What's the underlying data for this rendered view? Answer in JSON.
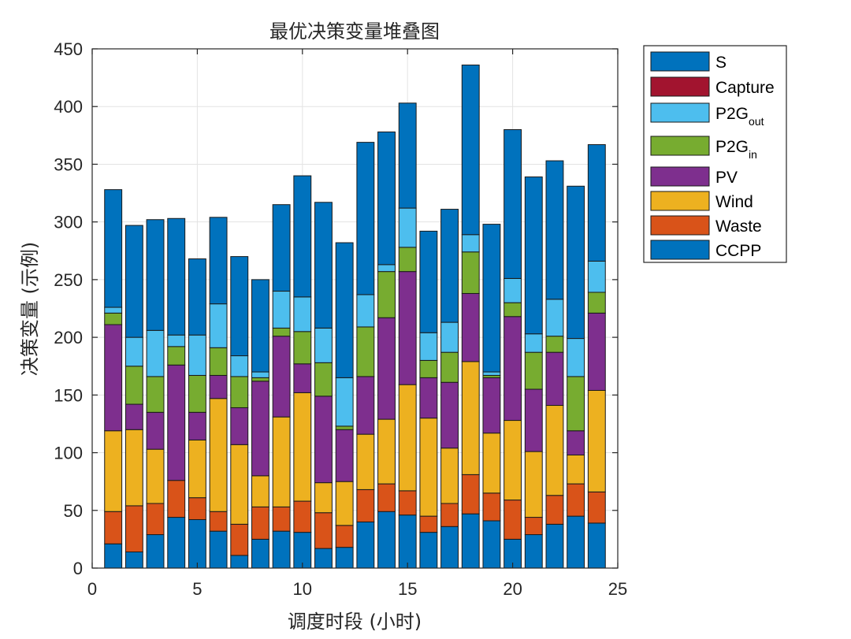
{
  "chart_data": {
    "type": "bar",
    "stacked": true,
    "title": "最优决策变量堆叠图",
    "xlabel": "调度时段 (小时)",
    "ylabel": "决策变量 (示例)",
    "xlim": [
      0,
      25
    ],
    "ylim": [
      0,
      450
    ],
    "xticks": [
      0,
      5,
      10,
      15,
      20,
      25
    ],
    "yticks": [
      0,
      50,
      100,
      150,
      200,
      250,
      300,
      350,
      400,
      450
    ],
    "grid": true,
    "legend_position": "outside-top-right",
    "categories": [
      1,
      2,
      3,
      4,
      5,
      6,
      7,
      8,
      9,
      10,
      11,
      12,
      13,
      14,
      15,
      16,
      17,
      18,
      19,
      20,
      21,
      22,
      23,
      24
    ],
    "series": [
      {
        "name": "CCPP",
        "color": "#0072BD",
        "values": [
          21,
          14,
          29,
          44,
          42,
          32,
          11,
          25,
          32,
          31,
          17,
          18,
          40,
          49,
          46,
          31,
          36,
          47,
          41,
          25,
          29,
          38,
          45,
          39
        ]
      },
      {
        "name": "Waste",
        "color": "#D95319",
        "values": [
          28,
          40,
          27,
          32,
          19,
          17,
          27,
          28,
          21,
          27,
          31,
          19,
          28,
          24,
          21,
          14,
          20,
          34,
          24,
          34,
          15,
          25,
          28,
          27
        ]
      },
      {
        "name": "Wind",
        "color": "#EDB120",
        "values": [
          70,
          66,
          47,
          0,
          50,
          98,
          69,
          27,
          78,
          94,
          26,
          38,
          48,
          56,
          92,
          85,
          48,
          98,
          52,
          69,
          57,
          78,
          25,
          88
        ]
      },
      {
        "name": "PV",
        "color": "#7E2F8E",
        "values": [
          92,
          22,
          32,
          100,
          24,
          20,
          32,
          82,
          70,
          25,
          75,
          45,
          50,
          88,
          98,
          35,
          57,
          59,
          48,
          90,
          54,
          46,
          21,
          67
        ]
      },
      {
        "name": "P2G_in",
        "color": "#77AC30",
        "values": [
          10,
          33,
          31,
          16,
          32,
          24,
          27,
          3,
          7,
          28,
          29,
          3,
          43,
          40,
          21,
          15,
          26,
          36,
          2,
          12,
          32,
          14,
          47,
          18
        ]
      },
      {
        "name": "P2G_out",
        "color": "#4DBEEE",
        "values": [
          5,
          25,
          40,
          10,
          35,
          38,
          18,
          5,
          32,
          30,
          30,
          42,
          28,
          6,
          34,
          24,
          26,
          15,
          3,
          21,
          16,
          32,
          33,
          27
        ]
      },
      {
        "name": "Capture",
        "color": "#A2142F",
        "values": [
          0,
          0,
          0,
          0,
          0,
          0,
          0,
          0,
          0,
          0,
          0,
          0,
          0,
          0,
          0,
          0,
          0,
          0,
          0,
          0,
          0,
          0,
          0,
          0
        ]
      },
      {
        "name": "S",
        "color": "#0072BD",
        "values": [
          102,
          97,
          96,
          101,
          66,
          75,
          86,
          80,
          75,
          105,
          109,
          117,
          132,
          115,
          91,
          88,
          98,
          147,
          128,
          129,
          136,
          120,
          132,
          101
        ]
      }
    ]
  },
  "legend": {
    "items": [
      {
        "main": "S",
        "sub": "",
        "color": "#0072BD"
      },
      {
        "main": "Capture",
        "sub": "",
        "color": "#A2142F"
      },
      {
        "main": "P2G",
        "sub": "out",
        "color": "#4DBEEE"
      },
      {
        "main": "P2G",
        "sub": "in",
        "color": "#77AC30"
      },
      {
        "main": "PV",
        "sub": "",
        "color": "#7E2F8E"
      },
      {
        "main": "Wind",
        "sub": "",
        "color": "#EDB120"
      },
      {
        "main": "Waste",
        "sub": "",
        "color": "#D95319"
      },
      {
        "main": "CCPP",
        "sub": "",
        "color": "#0072BD"
      }
    ]
  }
}
